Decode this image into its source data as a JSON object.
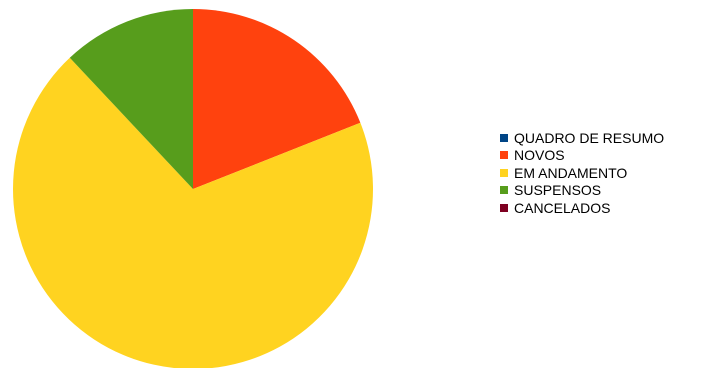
{
  "chart_data": {
    "type": "pie",
    "title": "",
    "categories": [
      "QUADRO DE RESUMO",
      "NOVOS",
      "EM ANDAMENTO",
      "SUSPENSOS",
      "CANCELADOS"
    ],
    "values": [
      0,
      19,
      69,
      12,
      0
    ],
    "unit": "percent (estimated share)",
    "colors": [
      "#004586",
      "#ff420e",
      "#ffd320",
      "#579d1c",
      "#7e0021"
    ],
    "legend_position": "right",
    "start_angle_deg": 0,
    "direction": "clockwise"
  }
}
